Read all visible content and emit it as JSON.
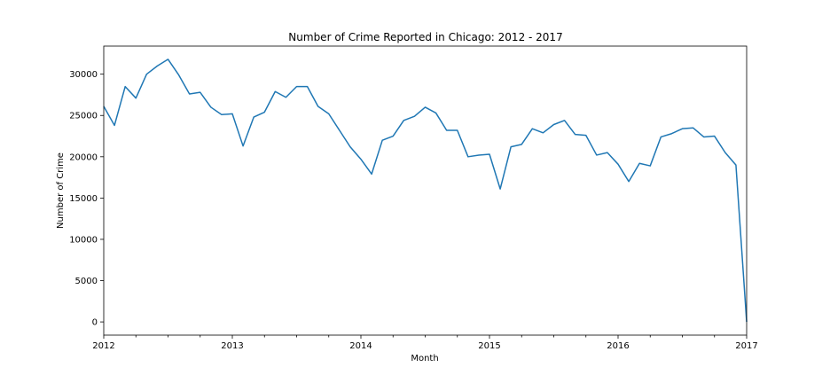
{
  "chart_data": {
    "type": "line",
    "title": "Number of Crime Reported in Chicago: 2012 - 2017",
    "xlabel": "Month",
    "ylabel": "Number of Crime",
    "x_major_ticks": [
      "2012",
      "2013",
      "2014",
      "2015",
      "2016",
      "2017"
    ],
    "ylim": [
      -1600,
      33400
    ],
    "yticks": [
      0,
      5000,
      10000,
      15000,
      20000,
      25000,
      30000
    ],
    "grid": false,
    "series": [
      {
        "color": "#1f77b4",
        "x": [
          "2012-01",
          "2012-02",
          "2012-03",
          "2012-04",
          "2012-05",
          "2012-06",
          "2012-07",
          "2012-08",
          "2012-09",
          "2012-10",
          "2012-11",
          "2012-12",
          "2013-01",
          "2013-02",
          "2013-03",
          "2013-04",
          "2013-05",
          "2013-06",
          "2013-07",
          "2013-08",
          "2013-09",
          "2013-10",
          "2013-11",
          "2013-12",
          "2014-01",
          "2014-02",
          "2014-03",
          "2014-04",
          "2014-05",
          "2014-06",
          "2014-07",
          "2014-08",
          "2014-09",
          "2014-10",
          "2014-11",
          "2014-12",
          "2015-01",
          "2015-02",
          "2015-03",
          "2015-04",
          "2015-05",
          "2015-06",
          "2015-07",
          "2015-08",
          "2015-09",
          "2015-10",
          "2015-11",
          "2015-12",
          "2016-01",
          "2016-02",
          "2016-03",
          "2016-04",
          "2016-05",
          "2016-06",
          "2016-07",
          "2016-08",
          "2016-09",
          "2016-10",
          "2016-11",
          "2016-12",
          "2017-01"
        ],
        "values": [
          26100,
          23800,
          28500,
          27100,
          30000,
          31000,
          31800,
          29900,
          27600,
          27800,
          26000,
          25100,
          25200,
          21300,
          24800,
          25400,
          27900,
          27200,
          28500,
          28500,
          26100,
          25200,
          23200,
          21200,
          19700,
          17900,
          22000,
          22500,
          24400,
          24900,
          26000,
          25300,
          23200,
          23200,
          20000,
          20200,
          20300,
          16100,
          21200,
          21500,
          23400,
          22900,
          23900,
          24400,
          22700,
          22600,
          20200,
          20500,
          19100,
          17000,
          19200,
          18900,
          22400,
          22800,
          23400,
          23500,
          22400,
          22500,
          20500,
          19000,
          0
        ]
      }
    ]
  }
}
